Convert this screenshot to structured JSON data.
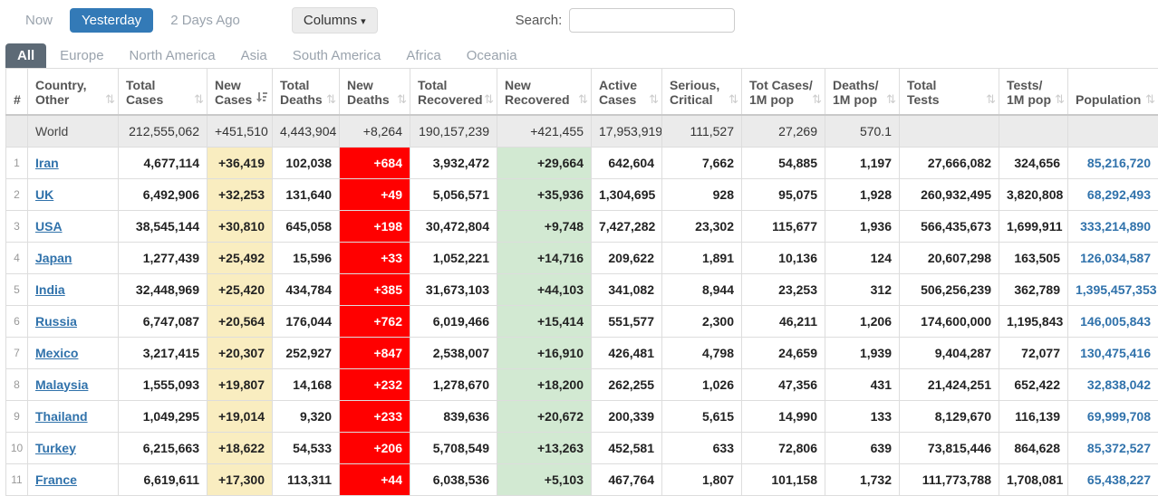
{
  "toolbar": {
    "time_buttons": [
      {
        "label": "Now",
        "active": false
      },
      {
        "label": "Yesterday",
        "active": true
      },
      {
        "label": "2 Days Ago",
        "active": false
      }
    ],
    "columns_button_label": "Columns",
    "search_label": "Search:",
    "search_value": "",
    "accent_color": "#337ab7"
  },
  "tabs": [
    {
      "label": "All",
      "active": true
    },
    {
      "label": "Europe",
      "active": false
    },
    {
      "label": "North America",
      "active": false
    },
    {
      "label": "Asia",
      "active": false
    },
    {
      "label": "South America",
      "active": false
    },
    {
      "label": "Africa",
      "active": false
    },
    {
      "label": "Oceania",
      "active": false
    }
  ],
  "table": {
    "columns": [
      {
        "line1": "#",
        "line2": "",
        "sortable": false,
        "sorted": ""
      },
      {
        "line1": "Country,",
        "line2": "Other",
        "sortable": true,
        "sorted": ""
      },
      {
        "line1": "Total",
        "line2": "Cases",
        "sortable": true,
        "sorted": ""
      },
      {
        "line1": "New",
        "line2": "Cases",
        "sortable": true,
        "sorted": "desc"
      },
      {
        "line1": "Total",
        "line2": "Deaths",
        "sortable": true,
        "sorted": ""
      },
      {
        "line1": "New",
        "line2": "Deaths",
        "sortable": true,
        "sorted": ""
      },
      {
        "line1": "Total",
        "line2": "Recovered",
        "sortable": true,
        "sorted": ""
      },
      {
        "line1": "New",
        "line2": "Recovered",
        "sortable": true,
        "sorted": ""
      },
      {
        "line1": "Active",
        "line2": "Cases",
        "sortable": true,
        "sorted": ""
      },
      {
        "line1": "Serious,",
        "line2": "Critical",
        "sortable": true,
        "sorted": ""
      },
      {
        "line1": "Tot Cases/",
        "line2": "1M pop",
        "sortable": true,
        "sorted": ""
      },
      {
        "line1": "Deaths/",
        "line2": "1M pop",
        "sortable": true,
        "sorted": ""
      },
      {
        "line1": "Total",
        "line2": "Tests",
        "sortable": true,
        "sorted": ""
      },
      {
        "line1": "Tests/",
        "line2": "1M pop",
        "sortable": true,
        "sorted": ""
      },
      {
        "line1": "Population",
        "line2": "",
        "sortable": true,
        "sorted": ""
      }
    ],
    "world_row": {
      "rank": "",
      "country": "World",
      "total_cases": "212,555,062",
      "new_cases": "+451,510",
      "total_deaths": "4,443,904",
      "new_deaths": "+8,264",
      "total_recovered": "190,157,239",
      "new_recovered": "+421,455",
      "active_cases": "17,953,919",
      "serious_critical": "111,527",
      "tot_cases_1m": "27,269",
      "deaths_1m": "570.1",
      "total_tests": "",
      "tests_1m": "",
      "population": ""
    },
    "rows": [
      {
        "rank": "1",
        "country": "Iran",
        "total_cases": "4,677,114",
        "new_cases": "+36,419",
        "total_deaths": "102,038",
        "new_deaths": "+684",
        "total_recovered": "3,932,472",
        "new_recovered": "+29,664",
        "active_cases": "642,604",
        "serious_critical": "7,662",
        "tot_cases_1m": "54,885",
        "deaths_1m": "1,197",
        "total_tests": "27,666,082",
        "tests_1m": "324,656",
        "population": "85,216,720"
      },
      {
        "rank": "2",
        "country": "UK",
        "total_cases": "6,492,906",
        "new_cases": "+32,253",
        "total_deaths": "131,640",
        "new_deaths": "+49",
        "total_recovered": "5,056,571",
        "new_recovered": "+35,936",
        "active_cases": "1,304,695",
        "serious_critical": "928",
        "tot_cases_1m": "95,075",
        "deaths_1m": "1,928",
        "total_tests": "260,932,495",
        "tests_1m": "3,820,808",
        "population": "68,292,493"
      },
      {
        "rank": "3",
        "country": "USA",
        "total_cases": "38,545,144",
        "new_cases": "+30,810",
        "total_deaths": "645,058",
        "new_deaths": "+198",
        "total_recovered": "30,472,804",
        "new_recovered": "+9,748",
        "active_cases": "7,427,282",
        "serious_critical": "23,302",
        "tot_cases_1m": "115,677",
        "deaths_1m": "1,936",
        "total_tests": "566,435,673",
        "tests_1m": "1,699,911",
        "population": "333,214,890"
      },
      {
        "rank": "4",
        "country": "Japan",
        "total_cases": "1,277,439",
        "new_cases": "+25,492",
        "total_deaths": "15,596",
        "new_deaths": "+33",
        "total_recovered": "1,052,221",
        "new_recovered": "+14,716",
        "active_cases": "209,622",
        "serious_critical": "1,891",
        "tot_cases_1m": "10,136",
        "deaths_1m": "124",
        "total_tests": "20,607,298",
        "tests_1m": "163,505",
        "population": "126,034,587"
      },
      {
        "rank": "5",
        "country": "India",
        "total_cases": "32,448,969",
        "new_cases": "+25,420",
        "total_deaths": "434,784",
        "new_deaths": "+385",
        "total_recovered": "31,673,103",
        "new_recovered": "+44,103",
        "active_cases": "341,082",
        "serious_critical": "8,944",
        "tot_cases_1m": "23,253",
        "deaths_1m": "312",
        "total_tests": "506,256,239",
        "tests_1m": "362,789",
        "population": "1,395,457,353"
      },
      {
        "rank": "6",
        "country": "Russia",
        "total_cases": "6,747,087",
        "new_cases": "+20,564",
        "total_deaths": "176,044",
        "new_deaths": "+762",
        "total_recovered": "6,019,466",
        "new_recovered": "+15,414",
        "active_cases": "551,577",
        "serious_critical": "2,300",
        "tot_cases_1m": "46,211",
        "deaths_1m": "1,206",
        "total_tests": "174,600,000",
        "tests_1m": "1,195,843",
        "population": "146,005,843"
      },
      {
        "rank": "7",
        "country": "Mexico",
        "total_cases": "3,217,415",
        "new_cases": "+20,307",
        "total_deaths": "252,927",
        "new_deaths": "+847",
        "total_recovered": "2,538,007",
        "new_recovered": "+16,910",
        "active_cases": "426,481",
        "serious_critical": "4,798",
        "tot_cases_1m": "24,659",
        "deaths_1m": "1,939",
        "total_tests": "9,404,287",
        "tests_1m": "72,077",
        "population": "130,475,416"
      },
      {
        "rank": "8",
        "country": "Malaysia",
        "total_cases": "1,555,093",
        "new_cases": "+19,807",
        "total_deaths": "14,168",
        "new_deaths": "+232",
        "total_recovered": "1,278,670",
        "new_recovered": "+18,200",
        "active_cases": "262,255",
        "serious_critical": "1,026",
        "tot_cases_1m": "47,356",
        "deaths_1m": "431",
        "total_tests": "21,424,251",
        "tests_1m": "652,422",
        "population": "32,838,042"
      },
      {
        "rank": "9",
        "country": "Thailand",
        "total_cases": "1,049,295",
        "new_cases": "+19,014",
        "total_deaths": "9,320",
        "new_deaths": "+233",
        "total_recovered": "839,636",
        "new_recovered": "+20,672",
        "active_cases": "200,339",
        "serious_critical": "5,615",
        "tot_cases_1m": "14,990",
        "deaths_1m": "133",
        "total_tests": "8,129,670",
        "tests_1m": "116,139",
        "population": "69,999,708"
      },
      {
        "rank": "10",
        "country": "Turkey",
        "total_cases": "6,215,663",
        "new_cases": "+18,622",
        "total_deaths": "54,533",
        "new_deaths": "+206",
        "total_recovered": "5,708,549",
        "new_recovered": "+13,263",
        "active_cases": "452,581",
        "serious_critical": "633",
        "tot_cases_1m": "72,806",
        "deaths_1m": "639",
        "total_tests": "73,815,446",
        "tests_1m": "864,628",
        "population": "85,372,527"
      },
      {
        "rank": "11",
        "country": "France",
        "total_cases": "6,619,611",
        "new_cases": "+17,300",
        "total_deaths": "113,311",
        "new_deaths": "+44",
        "total_recovered": "6,038,536",
        "new_recovered": "+5,103",
        "active_cases": "467,764",
        "serious_critical": "1,807",
        "tot_cases_1m": "101,158",
        "deaths_1m": "1,732",
        "total_tests": "111,773,788",
        "tests_1m": "1,708,081",
        "population": "65,438,227"
      }
    ]
  },
  "colors": {
    "new_cases_bg": "#f9edc0",
    "new_deaths_bg": "#ff0000",
    "new_recovered_bg": "#d2e9d2",
    "world_row_bg": "#ebebeb",
    "link_blue": "#3072ab",
    "active_tab_bg": "#5d6a76"
  }
}
